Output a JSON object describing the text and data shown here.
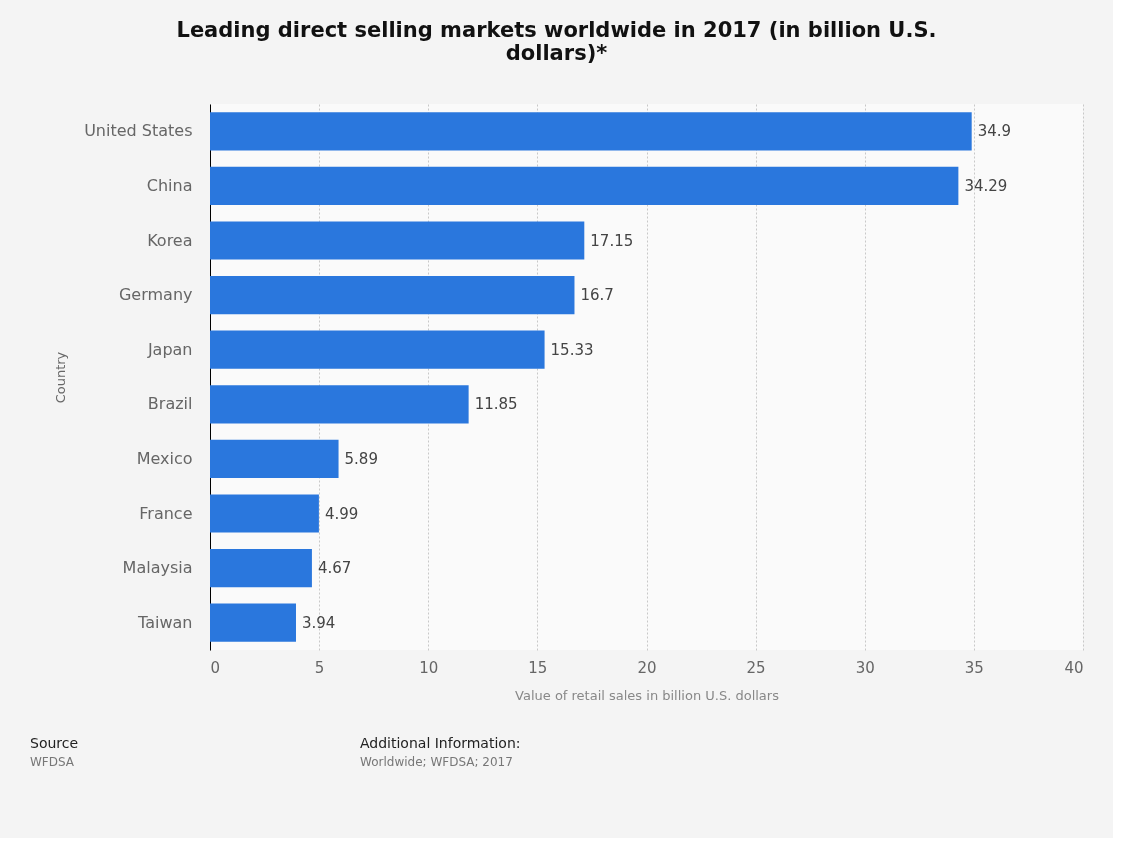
{
  "chart_data": {
    "type": "bar",
    "orientation": "horizontal",
    "title": "Leading direct selling markets worldwide in 2017 (in billion U.S. dollars)*",
    "xlabel": "Value of retail sales in billion U.S. dollars",
    "ylabel": "Country",
    "categories": [
      "United States",
      "China",
      "Korea",
      "Germany",
      "Japan",
      "Brazil",
      "Mexico",
      "France",
      "Malaysia",
      "Taiwan"
    ],
    "values": [
      34.9,
      34.29,
      17.15,
      16.7,
      15.33,
      11.85,
      5.89,
      4.99,
      4.67,
      3.94
    ],
    "color": "#2a77dd",
    "xlim": [
      0,
      40
    ],
    "xticks": [
      0,
      5,
      10,
      15,
      20,
      25,
      30,
      35,
      40
    ],
    "grid": "x",
    "data_labels": true,
    "annotations": [
      "Source",
      "WFDSA",
      "Additional Information:",
      "Worldwide; WFDSA; 2017"
    ]
  }
}
